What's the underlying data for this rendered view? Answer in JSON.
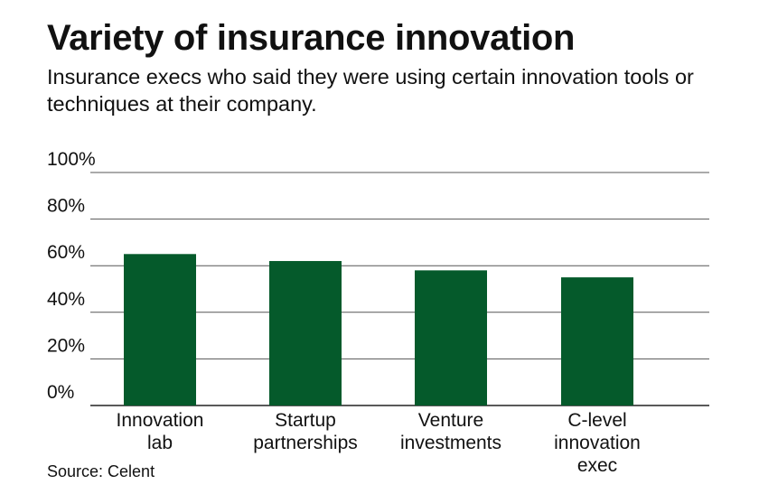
{
  "title": "Variety of insurance innovation",
  "subtitle": "Insurance execs who said they were using certain innovation tools or techniques at their company.",
  "source": "Source: Celent",
  "chart_data": {
    "type": "bar",
    "categories": [
      "Innovation lab",
      "Startup partnerships",
      "Venture investments",
      "C-level innovation exec"
    ],
    "category_lines": [
      [
        "Innovation",
        "lab"
      ],
      [
        "Startup",
        "partnerships"
      ],
      [
        "Venture",
        "investments"
      ],
      [
        "C-level",
        "innovation",
        "exec"
      ]
    ],
    "values": [
      65,
      62,
      58,
      55
    ],
    "yticks": [
      "0%",
      "20%",
      "40%",
      "60%",
      "80%",
      "100%"
    ],
    "ylim": [
      0,
      100
    ],
    "grid": true,
    "bar_color": "#055a2b",
    "grid_color": "#555555"
  }
}
